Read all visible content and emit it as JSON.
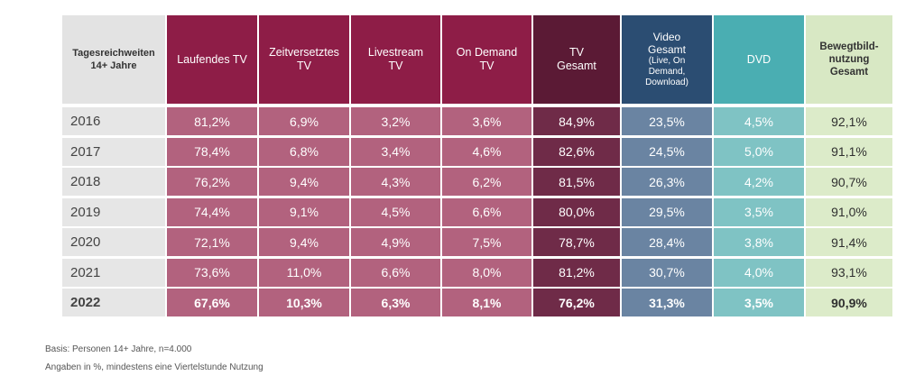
{
  "chart_data": {
    "type": "table",
    "columns": [
      {
        "key": "label",
        "header": [
          "Tagesreichweiten",
          "14+ Jahre"
        ],
        "header_bg": "#e3e3e3",
        "cell_bg": "#e6e6e6",
        "cell_color": "#444444"
      },
      {
        "key": "laufendes_tv",
        "header": [
          "Laufendes TV"
        ],
        "header_bg": "#8e1d47",
        "cell_bg": "#b2627e",
        "cell_color": "#ffffff"
      },
      {
        "key": "zeitversetztes_tv",
        "header": [
          "Zeitversetztes",
          "TV"
        ],
        "header_bg": "#8e1d47",
        "cell_bg": "#b2627e",
        "cell_color": "#ffffff"
      },
      {
        "key": "livestream_tv",
        "header": [
          "Livestream",
          "TV"
        ],
        "header_bg": "#8e1d47",
        "cell_bg": "#b2627e",
        "cell_color": "#ffffff"
      },
      {
        "key": "on_demand_tv",
        "header": [
          "On Demand",
          "TV"
        ],
        "header_bg": "#8e1d47",
        "cell_bg": "#b2627e",
        "cell_color": "#ffffff"
      },
      {
        "key": "tv_gesamt",
        "header": [
          "TV",
          "Gesamt"
        ],
        "header_bg": "#5b1a35",
        "cell_bg": "#6f2b48",
        "cell_color": "#ffffff"
      },
      {
        "key": "video_gesamt",
        "header": [
          "Video",
          "Gesamt"
        ],
        "header_sub": [
          "(Live, On",
          "Demand,",
          "Download)"
        ],
        "header_bg": "#2b4d72",
        "cell_bg": "#6a84a2",
        "cell_color": "#ffffff"
      },
      {
        "key": "dvd",
        "header": [
          "DVD"
        ],
        "header_bg": "#4aaeb2",
        "cell_bg": "#7fc3c4",
        "cell_color": "#ffffff"
      },
      {
        "key": "bewegtbild_gesamt",
        "header": [
          "Bewegtbild-",
          "nutzung",
          "Gesamt"
        ],
        "header_bg": "#d8e8c4",
        "cell_bg": "#dcebc9",
        "cell_color": "#2f2f2f"
      }
    ],
    "rows": [
      {
        "year": "2016",
        "values": [
          "81,2%",
          "6,9%",
          "3,2%",
          "3,6%",
          "84,9%",
          "23,5%",
          "4,5%",
          "92,1%"
        ],
        "bold": false
      },
      {
        "year": "2017",
        "values": [
          "78,4%",
          "6,8%",
          "3,4%",
          "4,6%",
          "82,6%",
          "24,5%",
          "5,0%",
          "91,1%"
        ],
        "bold": false
      },
      {
        "year": "2018",
        "values": [
          "76,2%",
          "9,4%",
          "4,3%",
          "6,2%",
          "81,5%",
          "26,3%",
          "4,2%",
          "90,7%"
        ],
        "bold": false
      },
      {
        "year": "2019",
        "values": [
          "74,4%",
          "9,1%",
          "4,5%",
          "6,6%",
          "80,0%",
          "29,5%",
          "3,5%",
          "91,0%"
        ],
        "bold": false
      },
      {
        "year": "2020",
        "values": [
          "72,1%",
          "9,4%",
          "4,9%",
          "7,5%",
          "78,7%",
          "28,4%",
          "3,8%",
          "91,4%"
        ],
        "bold": false
      },
      {
        "year": "2021",
        "values": [
          "73,6%",
          "11,0%",
          "6,6%",
          "8,0%",
          "81,2%",
          "30,7%",
          "4,0%",
          "93,1%"
        ],
        "bold": false
      },
      {
        "year": "2022",
        "values": [
          "67,6%",
          "10,3%",
          "6,3%",
          "8,1%",
          "76,2%",
          "31,3%",
          "3,5%",
          "90,9%"
        ],
        "bold": true
      }
    ]
  },
  "footnotes": {
    "basis": "Basis: Personen 14+ Jahre, n=4.000",
    "angaben": "Angaben in %, mindestens eine Viertelstunde Nutzung"
  }
}
